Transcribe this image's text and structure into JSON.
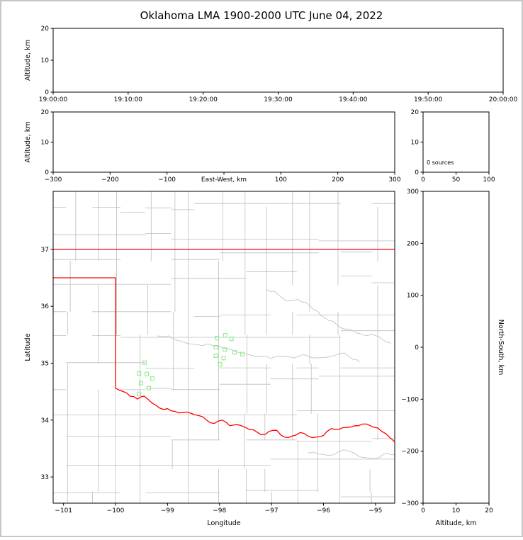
{
  "title": "Oklahoma LMA 1900-2000 UTC June 04, 2022",
  "colors": {
    "background": "#ffffff",
    "frame": "#c6c6c6",
    "axis": "#000000",
    "county_lines": "#bdbdbd",
    "rivers": "#bdbdbd",
    "state_border": "#ff0000",
    "station_marker": "#90ee90"
  },
  "chart_data": [
    {
      "id": "time_height",
      "type": "scatter",
      "ylabel": "Altitude, km",
      "xtick_labels": [
        "19:00:00",
        "19:10:00",
        "19:20:00",
        "19:30:00",
        "19:40:00",
        "19:50:00",
        "20:00:00"
      ],
      "ylim": [
        0,
        20
      ],
      "yticks": [
        0,
        10,
        20
      ],
      "points": []
    },
    {
      "id": "ew_height",
      "type": "scatter",
      "xlabel": "East-West, km",
      "ylabel": "Altitude, km",
      "xlim": [
        -300,
        300
      ],
      "xticks": [
        -300,
        -200,
        -100,
        0,
        100,
        200,
        300
      ],
      "ylim": [
        0,
        20
      ],
      "yticks": [
        0,
        10,
        20
      ],
      "points": []
    },
    {
      "id": "height_histogram",
      "type": "line",
      "annotation": "0 sources",
      "xlim": [
        0,
        100
      ],
      "xticks": [
        0,
        50,
        100
      ],
      "ylim": [
        0,
        20
      ],
      "yticks": [
        0,
        10,
        20
      ],
      "points": []
    },
    {
      "id": "plan_view_map",
      "type": "scatter",
      "xlabel": "Longitude",
      "ylabel": "Latitude",
      "xlim": [
        -101.2,
        -94.63
      ],
      "ylim": [
        32.54,
        38.02
      ],
      "xticks": [
        -101,
        -100,
        -99,
        -98,
        -97,
        -96,
        -95
      ],
      "yticks": [
        33,
        34,
        35,
        36,
        37
      ],
      "lma_stations": [
        [
          -98.05,
          35.44
        ],
        [
          -97.89,
          35.49
        ],
        [
          -97.77,
          35.43
        ],
        [
          -98.07,
          35.28
        ],
        [
          -97.9,
          35.24
        ],
        [
          -97.71,
          35.19
        ],
        [
          -98.07,
          35.13
        ],
        [
          -97.92,
          35.09
        ],
        [
          -97.56,
          35.16
        ],
        [
          -97.99,
          34.98
        ],
        [
          -99.44,
          35.01
        ],
        [
          -99.55,
          34.82
        ],
        [
          -99.4,
          34.81
        ],
        [
          -99.29,
          34.73
        ],
        [
          -99.51,
          34.65
        ],
        [
          -99.36,
          34.56
        ],
        [
          -99.55,
          34.46
        ]
      ],
      "state_border": {
        "kansas_oklahoma": [
          [
            -101.2,
            37.0
          ],
          [
            -94.63,
            37.0
          ]
        ],
        "panhandle_texas": [
          [
            -101.2,
            36.5
          ],
          [
            -100.0,
            36.5
          ],
          [
            -100.0,
            34.56
          ]
        ],
        "missouri_corner": [
          [
            -94.618,
            37.0
          ],
          [
            -94.618,
            36.5
          ],
          [
            -94.63,
            36.5
          ]
        ],
        "red_river": [
          [
            -100.0,
            34.56
          ],
          [
            -99.85,
            34.5
          ],
          [
            -99.72,
            34.42
          ],
          [
            -99.58,
            34.37
          ],
          [
            -99.45,
            34.42
          ],
          [
            -99.3,
            34.3
          ],
          [
            -99.15,
            34.21
          ],
          [
            -99.0,
            34.2
          ],
          [
            -98.85,
            34.15
          ],
          [
            -98.7,
            34.13
          ],
          [
            -98.55,
            34.12
          ],
          [
            -98.4,
            34.08
          ],
          [
            -98.25,
            34.0
          ],
          [
            -98.1,
            33.94
          ],
          [
            -97.95,
            34.0
          ],
          [
            -97.8,
            33.9
          ],
          [
            -97.65,
            33.92
          ],
          [
            -97.5,
            33.87
          ],
          [
            -97.35,
            33.83
          ],
          [
            -97.2,
            33.74
          ],
          [
            -97.05,
            33.8
          ],
          [
            -96.9,
            33.82
          ],
          [
            -96.75,
            33.7
          ],
          [
            -96.6,
            33.72
          ],
          [
            -96.45,
            33.78
          ],
          [
            -96.3,
            33.72
          ],
          [
            -96.15,
            33.7
          ],
          [
            -96.0,
            33.73
          ],
          [
            -95.85,
            33.85
          ],
          [
            -95.7,
            33.84
          ],
          [
            -95.55,
            33.87
          ],
          [
            -95.4,
            33.9
          ],
          [
            -95.25,
            33.93
          ],
          [
            -95.1,
            33.9
          ],
          [
            -94.95,
            33.86
          ],
          [
            -94.8,
            33.76
          ],
          [
            -94.63,
            33.62
          ]
        ]
      },
      "rivers": [
        [
          [
            -97.1,
            36.3
          ],
          [
            -96.8,
            36.15
          ],
          [
            -96.5,
            36.12
          ],
          [
            -96.2,
            35.95
          ],
          [
            -95.9,
            35.75
          ],
          [
            -95.6,
            35.6
          ],
          [
            -95.3,
            35.52
          ],
          [
            -95.0,
            35.48
          ],
          [
            -94.7,
            35.35
          ]
        ],
        [
          [
            -99.2,
            35.48
          ],
          [
            -98.8,
            35.4
          ],
          [
            -98.4,
            35.32
          ],
          [
            -98.0,
            35.3
          ],
          [
            -97.6,
            35.18
          ],
          [
            -97.2,
            35.12
          ],
          [
            -96.8,
            35.12
          ],
          [
            -96.4,
            35.15
          ],
          [
            -96.0,
            35.1
          ],
          [
            -95.6,
            35.18
          ],
          [
            -95.3,
            35.02
          ]
        ],
        [
          [
            -96.3,
            33.42
          ],
          [
            -95.9,
            33.38
          ],
          [
            -95.5,
            33.45
          ],
          [
            -95.1,
            33.33
          ],
          [
            -94.75,
            33.42
          ],
          [
            -94.63,
            33.38
          ]
        ]
      ],
      "points": []
    },
    {
      "id": "ns_height",
      "type": "scatter",
      "xlabel": "Altitude, km",
      "ylabel_right": "North-South, km",
      "xlim": [
        0,
        20
      ],
      "xticks": [
        0,
        10,
        20
      ],
      "ylim": [
        -300,
        300
      ],
      "yticks": [
        -300,
        -200,
        -100,
        0,
        100,
        200,
        300
      ],
      "points": []
    }
  ]
}
